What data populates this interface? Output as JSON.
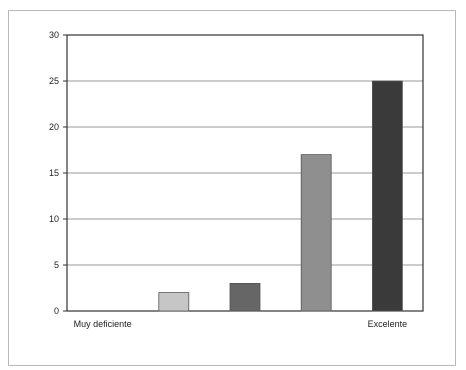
{
  "chart_data": {
    "type": "bar",
    "title": "",
    "xlabel": "",
    "ylabel": "",
    "categories": [
      "Muy deficiente",
      "",
      "",
      "",
      "Excelente"
    ],
    "values": [
      0,
      2,
      3,
      17,
      25
    ],
    "bar_colors": [
      "#8a8a8a",
      "#c6c6c6",
      "#666666",
      "#8f8f8f",
      "#3a3a3a"
    ],
    "ylim": [
      0,
      30
    ],
    "yticks": [
      0,
      5,
      10,
      15,
      20,
      25,
      30
    ],
    "grid": true,
    "legend": "none"
  }
}
